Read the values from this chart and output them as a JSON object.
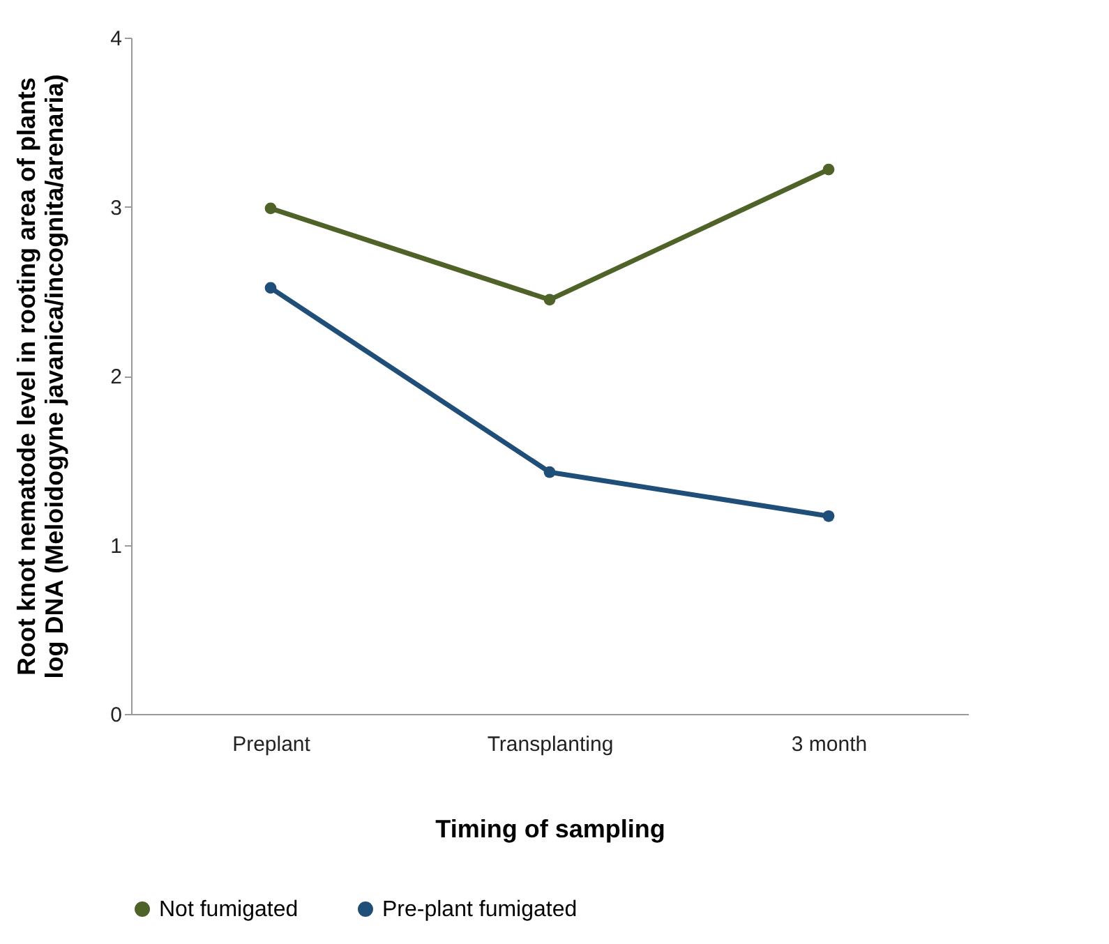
{
  "chart_data": {
    "type": "line",
    "xlabel": "Timing of sampling",
    "ylabel": "Root knot nematode level in rooting area of plants\nlog DNA (Meloidogyne javanica/incognita/arenaria)",
    "categories": [
      "Preplant",
      "Transplanting",
      "3 month"
    ],
    "series": [
      {
        "name": "Not fumigated",
        "color": "#4f6228",
        "values": [
          2.99,
          2.45,
          3.22
        ]
      },
      {
        "name": "Pre-plant fumigated",
        "color": "#1f4e79",
        "values": [
          2.52,
          1.43,
          1.17
        ]
      }
    ],
    "ylim": [
      0,
      4
    ],
    "yticks": [
      0,
      1,
      2,
      3,
      4
    ],
    "grid": false,
    "legend": "bottom",
    "marker": "circle",
    "line_style": "solid"
  }
}
